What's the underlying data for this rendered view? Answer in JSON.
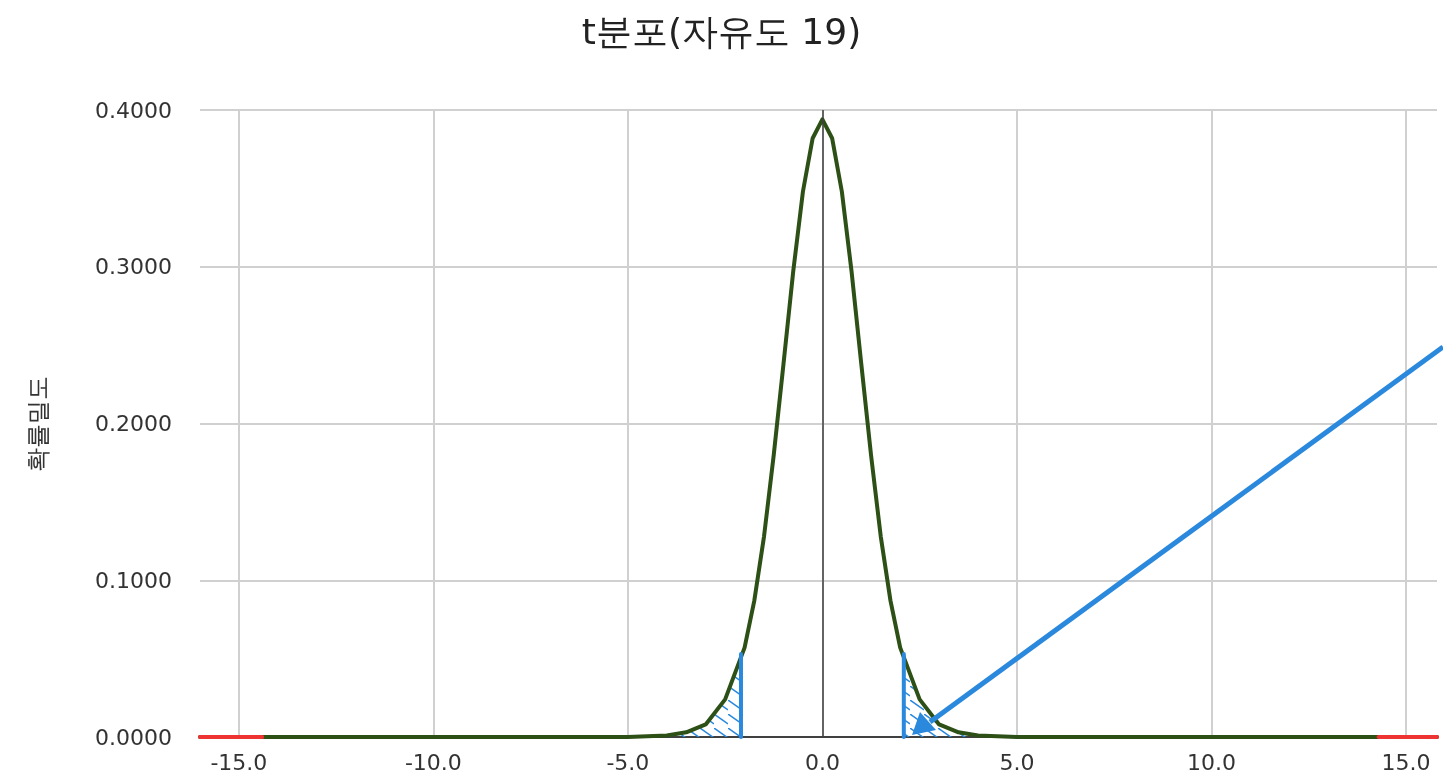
{
  "chart_data": {
    "type": "line",
    "title": "t분포(자유도 19)",
    "ylabel": "확률밀도",
    "xlim": [
      -16,
      15.8
    ],
    "ylim": [
      0,
      0.4
    ],
    "xticks": [
      {
        "value": -15,
        "label": "-15.0"
      },
      {
        "value": -10,
        "label": "-10.0"
      },
      {
        "value": -5,
        "label": "-5.0"
      },
      {
        "value": 0,
        "label": "0.0"
      },
      {
        "value": 5,
        "label": "5.0"
      },
      {
        "value": 10,
        "label": "10.0"
      },
      {
        "value": 15,
        "label": "15.0"
      }
    ],
    "yticks": [
      {
        "value": 0,
        "label": "0.0000"
      },
      {
        "value": 0.1,
        "label": "0.1000"
      },
      {
        "value": 0.2,
        "label": "0.2000"
      },
      {
        "value": 0.3,
        "label": "0.3000"
      },
      {
        "value": 0.4,
        "label": "0.4000"
      }
    ],
    "grid": true,
    "marker": "none",
    "line_style": "solid",
    "ref_lines": [
      {
        "axis": "x",
        "value": 0,
        "color": "#404040"
      }
    ],
    "series": [
      {
        "type": "area",
        "color": "#2a88dd",
        "x": [
          -6,
          -5,
          -4,
          -3.5,
          -3,
          -2.5,
          -2.093
        ],
        "values": [
          0,
          0,
          0.001,
          0.003,
          0.008,
          0.024,
          0.048
        ]
      },
      {
        "type": "area",
        "color": "#2a88dd",
        "x": [
          2.093,
          2.5,
          3,
          3.5,
          4,
          5,
          6
        ],
        "values": [
          0.048,
          0.024,
          0.008,
          0.003,
          0.001,
          0,
          0
        ]
      },
      {
        "color": "#2d5016",
        "x": [
          -16,
          -6,
          -5,
          -4,
          -3.5,
          -3,
          -2.5,
          -2,
          -1.75,
          -1.5,
          -1.25,
          -1,
          -0.75,
          -0.5,
          -0.25,
          0,
          0.25,
          0.5,
          0.75,
          1,
          1.25,
          1.5,
          1.75,
          2,
          2.5,
          3,
          3.5,
          4,
          5,
          6,
          15.8
        ],
        "values": [
          0,
          0,
          0,
          0.001,
          0.003,
          0.008,
          0.024,
          0.057,
          0.087,
          0.128,
          0.18,
          0.238,
          0.297,
          0.348,
          0.382,
          0.394,
          0.382,
          0.348,
          0.297,
          0.238,
          0.18,
          0.128,
          0.087,
          0.057,
          0.024,
          0.008,
          0.003,
          0.001,
          0,
          0,
          0
        ]
      },
      {
        "color": "#2a88dd",
        "x": [
          -2.093,
          -2.093
        ],
        "values": [
          0,
          0.053
        ]
      },
      {
        "color": "#2a88dd",
        "x": [
          2.093,
          2.093
        ],
        "values": [
          0,
          0.053
        ]
      },
      {
        "color": "#ee3333",
        "x": [
          -16,
          -14.4
        ],
        "values": [
          0,
          0
        ]
      },
      {
        "color": "#ee3333",
        "x": [
          14.3,
          15.8
        ],
        "values": [
          0,
          0
        ]
      }
    ]
  }
}
